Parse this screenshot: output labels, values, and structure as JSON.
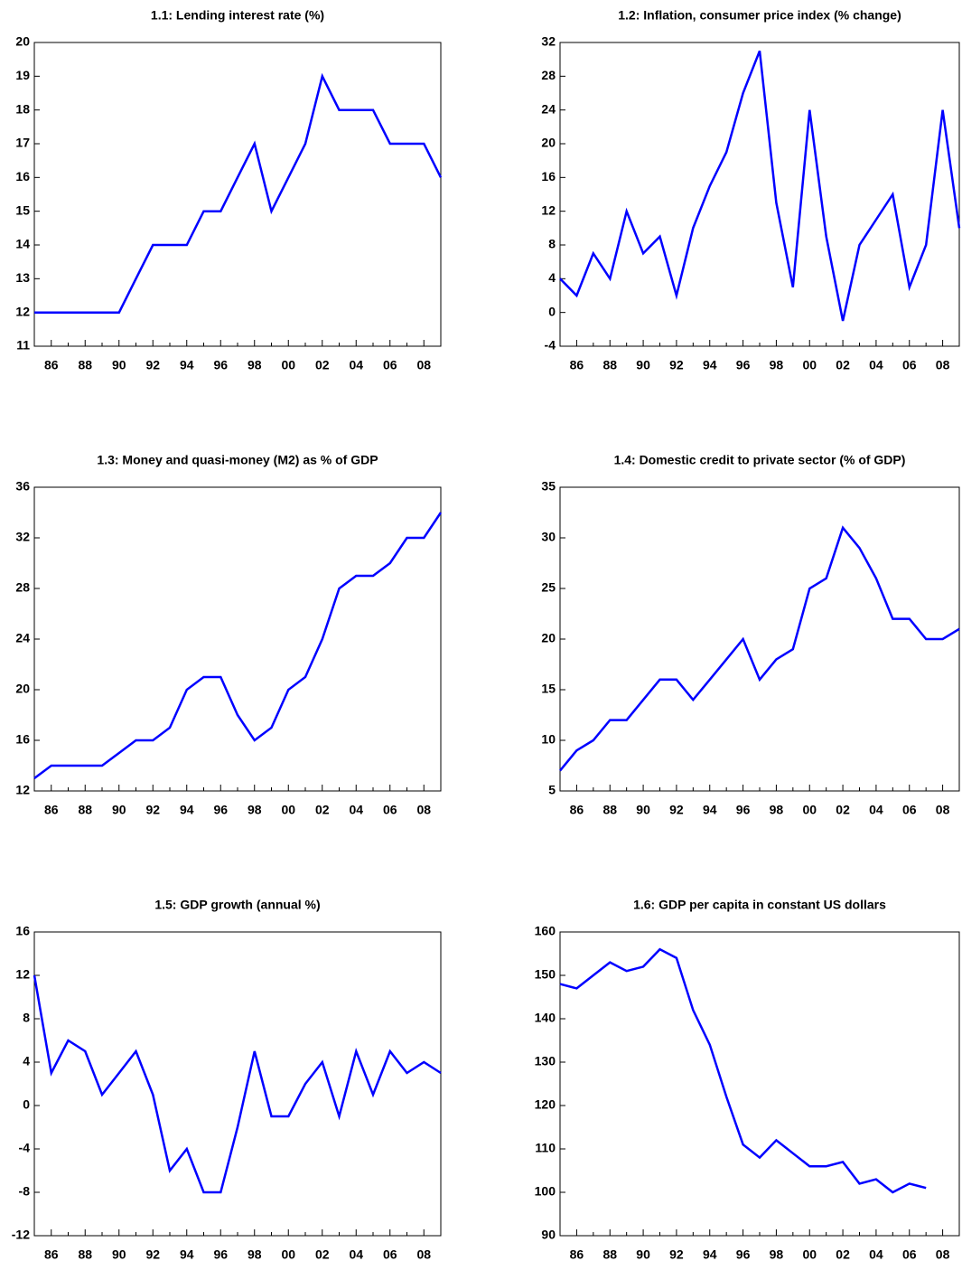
{
  "chart_data": [
    {
      "type": "line",
      "title": "1.1: Lending interest rate (%)",
      "color": "#0000ff",
      "categories": [
        null,
        "86",
        null,
        "88",
        null,
        "90",
        null,
        "92",
        null,
        "94",
        null,
        "96",
        null,
        "98",
        null,
        "00",
        null,
        "02",
        null,
        "04",
        null,
        "06",
        null,
        "08",
        null
      ],
      "values": [
        12,
        12,
        12,
        12,
        12,
        12,
        13,
        14,
        14,
        14,
        15,
        15,
        16,
        17,
        15,
        16,
        17,
        19,
        18,
        18,
        18,
        17,
        17,
        17,
        16
      ],
      "ylim": [
        11,
        20
      ],
      "yticks": [
        11,
        12,
        13,
        14,
        15,
        16,
        17,
        18,
        19,
        20
      ]
    },
    {
      "type": "line",
      "title": "1.2: Inflation, consumer price index (% change)",
      "color": "#0000ff",
      "categories": [
        null,
        "86",
        null,
        "88",
        null,
        "90",
        null,
        "92",
        null,
        "94",
        null,
        "96",
        null,
        "98",
        null,
        "00",
        null,
        "02",
        null,
        "04",
        null,
        "06",
        null,
        "08",
        null
      ],
      "values": [
        4,
        2,
        7,
        4,
        12,
        7,
        9,
        2,
        10,
        15,
        19,
        26,
        31,
        13,
        3,
        24,
        9,
        -1,
        8,
        11,
        14,
        3,
        8,
        24,
        10
      ],
      "ylim": [
        -4,
        32
      ],
      "yticks": [
        -4,
        0,
        4,
        8,
        12,
        16,
        20,
        24,
        28,
        32
      ]
    },
    {
      "type": "line",
      "title": "1.3: Money and quasi-money (M2) as % of GDP",
      "color": "#0000ff",
      "categories": [
        null,
        "86",
        null,
        "88",
        null,
        "90",
        null,
        "92",
        null,
        "94",
        null,
        "96",
        null,
        "98",
        null,
        "00",
        null,
        "02",
        null,
        "04",
        null,
        "06",
        null,
        "08",
        null
      ],
      "values": [
        13,
        14,
        14,
        14,
        14,
        15,
        16,
        16,
        17,
        20,
        21,
        21,
        18,
        16,
        17,
        20,
        21,
        24,
        28,
        29,
        29,
        30,
        32,
        32,
        34
      ],
      "ylim": [
        12,
        36
      ],
      "yticks": [
        12,
        16,
        20,
        24,
        28,
        32,
        36
      ]
    },
    {
      "type": "line",
      "title": "1.4: Domestic credit to private sector (% of GDP)",
      "color": "#0000ff",
      "categories": [
        null,
        "86",
        null,
        "88",
        null,
        "90",
        null,
        "92",
        null,
        "94",
        null,
        "96",
        null,
        "98",
        null,
        "00",
        null,
        "02",
        null,
        "04",
        null,
        "06",
        null,
        "08",
        null
      ],
      "values": [
        7,
        9,
        10,
        12,
        12,
        14,
        16,
        16,
        14,
        16,
        18,
        20,
        16,
        18,
        19,
        25,
        26,
        31,
        29,
        26,
        22,
        22,
        20,
        20,
        21
      ],
      "ylim": [
        5,
        35
      ],
      "yticks": [
        5,
        10,
        15,
        20,
        25,
        30,
        35
      ]
    },
    {
      "type": "line",
      "title": "1.5: GDP growth (annual %)",
      "color": "#0000ff",
      "categories": [
        null,
        "86",
        null,
        "88",
        null,
        "90",
        null,
        "92",
        null,
        "94",
        null,
        "96",
        null,
        "98",
        null,
        "00",
        null,
        "02",
        null,
        "04",
        null,
        "06",
        null,
        "08",
        null
      ],
      "values": [
        12,
        3,
        6,
        5,
        1,
        3,
        5,
        1,
        -6,
        -4,
        -8,
        -8,
        -2,
        5,
        -1,
        -1,
        2,
        4,
        -1,
        5,
        1,
        5,
        3,
        4,
        3
      ],
      "ylim": [
        -12,
        16
      ],
      "yticks": [
        -12,
        -8,
        -4,
        0,
        4,
        8,
        12,
        16
      ]
    },
    {
      "type": "line",
      "title": "1.6: GDP per capita in constant US dollars",
      "color": "#0000ff",
      "categories": [
        null,
        "86",
        null,
        "88",
        null,
        "90",
        null,
        "92",
        null,
        "94",
        null,
        "96",
        null,
        "98",
        null,
        "00",
        null,
        "02",
        null,
        "04",
        null,
        "06",
        null,
        "08",
        null
      ],
      "values": [
        148,
        147,
        150,
        153,
        151,
        152,
        156,
        154,
        142,
        134,
        122,
        111,
        108,
        112,
        109,
        106,
        106,
        107,
        102,
        103,
        100,
        102,
        101,
        null,
        null
      ],
      "ylim": [
        90,
        160
      ],
      "yticks": [
        90,
        100,
        110,
        120,
        130,
        140,
        150,
        160
      ]
    }
  ]
}
